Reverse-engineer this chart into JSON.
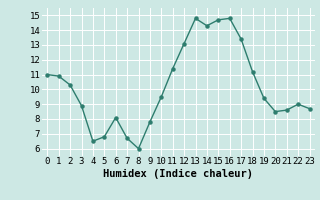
{
  "x": [
    0,
    1,
    2,
    3,
    4,
    5,
    6,
    7,
    8,
    9,
    10,
    11,
    12,
    13,
    14,
    15,
    16,
    17,
    18,
    19,
    20,
    21,
    22,
    23
  ],
  "y": [
    11.0,
    10.9,
    10.3,
    8.9,
    6.5,
    6.8,
    8.1,
    6.7,
    6.0,
    7.8,
    9.5,
    11.4,
    13.1,
    14.8,
    14.3,
    14.7,
    14.8,
    13.4,
    11.2,
    9.4,
    8.5,
    8.6,
    9.0,
    8.7
  ],
  "line_color": "#2e7d6e",
  "marker": "o",
  "markersize": 2.2,
  "linewidth": 1.0,
  "xlabel": "Humidex (Indice chaleur)",
  "xlim": [
    -0.5,
    23.5
  ],
  "ylim": [
    5.5,
    15.5
  ],
  "yticks": [
    6,
    7,
    8,
    9,
    10,
    11,
    12,
    13,
    14,
    15
  ],
  "xtick_labels": [
    "0",
    "1",
    "2",
    "3",
    "4",
    "5",
    "6",
    "7",
    "8",
    "9",
    "10",
    "11",
    "12",
    "13",
    "14",
    "15",
    "16",
    "17",
    "18",
    "19",
    "20",
    "21",
    "22",
    "23"
  ],
  "bg_color": "#cde8e4",
  "grid_color": "#ffffff",
  "xlabel_fontsize": 7.5,
  "tick_fontsize": 6.5
}
